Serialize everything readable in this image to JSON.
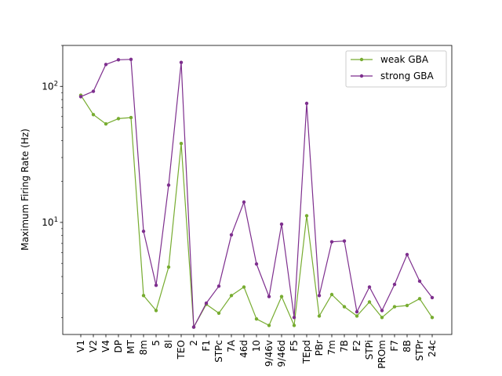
{
  "chart_data": {
    "type": "line",
    "yscale": "log",
    "ylabel": "Maximum Firing Rate (Hz)",
    "xlabel": "",
    "title": "",
    "ylim": [
      1.5,
      200
    ],
    "grid": false,
    "legend_position": "top-right",
    "y_ticks": [
      {
        "value": 10,
        "base": "10",
        "exp": "1"
      },
      {
        "value": 100,
        "base": "10",
        "exp": "2"
      }
    ],
    "categories": [
      "V1",
      "V2",
      "V4",
      "DP",
      "MT",
      "8m",
      "5",
      "8l",
      "TEO",
      "2",
      "F1",
      "STPc",
      "7A",
      "46d",
      "10",
      "9/46v",
      "9/46d",
      "F5",
      "TEpd",
      "PBr",
      "7m",
      "7B",
      "F2",
      "STPi",
      "PROm",
      "F7",
      "8B",
      "STPr",
      "24c"
    ],
    "series": [
      {
        "name": "weak GBA",
        "color": "#77ac30",
        "values": [
          86,
          62,
          53,
          58,
          59,
          2.9,
          2.25,
          4.7,
          38,
          1.7,
          2.5,
          2.15,
          2.9,
          3.35,
          1.95,
          1.75,
          2.85,
          1.75,
          11.2,
          2.05,
          2.95,
          2.4,
          2.05,
          2.6,
          2.0,
          2.4,
          2.45,
          2.75,
          2.0
        ]
      },
      {
        "name": "strong GBA",
        "color": "#7e2f8e",
        "values": [
          84,
          92,
          145,
          157,
          158,
          8.6,
          3.45,
          18.8,
          150,
          1.7,
          2.55,
          3.4,
          8.1,
          14.1,
          4.95,
          2.85,
          9.7,
          2.0,
          75,
          2.9,
          7.2,
          7.3,
          2.2,
          3.35,
          2.25,
          3.5,
          5.8,
          3.7,
          2.8
        ]
      }
    ]
  }
}
